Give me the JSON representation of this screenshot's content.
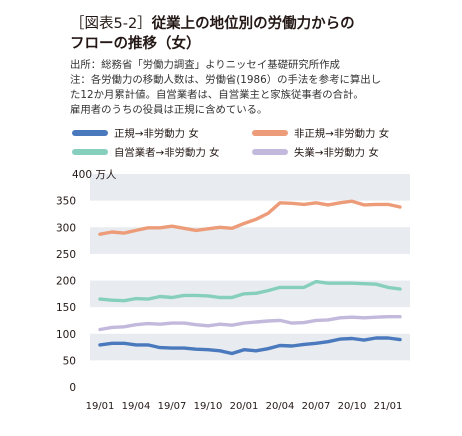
{
  "title": {
    "bracket": "［図表5-2］",
    "line1": "従業上の地位別の労働力からの",
    "line2": "フローの推移（女）"
  },
  "notes": [
    "出所：総務省「労働力調査」よりニッセイ基礎研究所作成",
    "注：各労働力の移動人数は、労働省(1986）の手法を参考に算出し",
    "た12か月累計値。自営業者は、自営業主と家族従事者の合計。",
    "雇用者のうちの役員は正規に含めている。"
  ],
  "colors": {
    "regular": "#4a79bd",
    "nonregular": "#ed9c79",
    "selfemployed": "#86cfbd",
    "unemployed": "#c3b9dc",
    "band": "#e8ecf0"
  },
  "chart_data": {
    "type": "line",
    "title": "",
    "xlabel": "",
    "ylabel": "万人",
    "ylabel_top": "400 万人",
    "ylim": [
      0,
      400
    ],
    "yticks": [
      0,
      50,
      100,
      150,
      200,
      250,
      300,
      350,
      400
    ],
    "x": [
      "19/01",
      "19/02",
      "19/03",
      "19/04",
      "19/05",
      "19/06",
      "19/07",
      "19/08",
      "19/09",
      "19/10",
      "19/11",
      "19/12",
      "20/01",
      "20/02",
      "20/03",
      "20/04",
      "20/05",
      "20/06",
      "20/07",
      "20/08",
      "20/09",
      "20/10",
      "20/11",
      "20/12",
      "21/01",
      "21/02"
    ],
    "xticklabels": [
      "19/01",
      "19/04",
      "19/07",
      "19/10",
      "20/01",
      "20/04",
      "20/07",
      "20/10",
      "21/01"
    ],
    "grid": "horizontal bands",
    "legend_position": "top",
    "series": [
      {
        "key": "regular",
        "name": "正規→非労動力 女",
        "values": [
          79,
          82,
          82,
          79,
          79,
          74,
          73,
          73,
          71,
          70,
          68,
          63,
          70,
          68,
          72,
          78,
          77,
          80,
          82,
          85,
          90,
          91,
          88,
          92,
          92,
          89
        ]
      },
      {
        "key": "nonregular",
        "name": "非正規→非労動力 女",
        "values": [
          287,
          291,
          289,
          294,
          299,
          299,
          302,
          298,
          294,
          297,
          300,
          298,
          307,
          315,
          326,
          346,
          345,
          343,
          346,
          342,
          346,
          349,
          342,
          343,
          343,
          338
        ]
      },
      {
        "key": "selfemployed",
        "name": "自営業者→非労動力 女",
        "values": [
          165,
          163,
          162,
          166,
          165,
          170,
          168,
          172,
          172,
          171,
          168,
          168,
          175,
          176,
          181,
          187,
          187,
          187,
          198,
          195,
          195,
          195,
          194,
          193,
          187,
          184
        ]
      },
      {
        "key": "unemployed",
        "name": "失業→非労動力 女",
        "values": [
          108,
          112,
          113,
          117,
          119,
          118,
          120,
          120,
          117,
          115,
          118,
          116,
          120,
          122,
          124,
          125,
          120,
          121,
          125,
          126,
          130,
          131,
          130,
          131,
          132,
          132
        ]
      }
    ]
  }
}
